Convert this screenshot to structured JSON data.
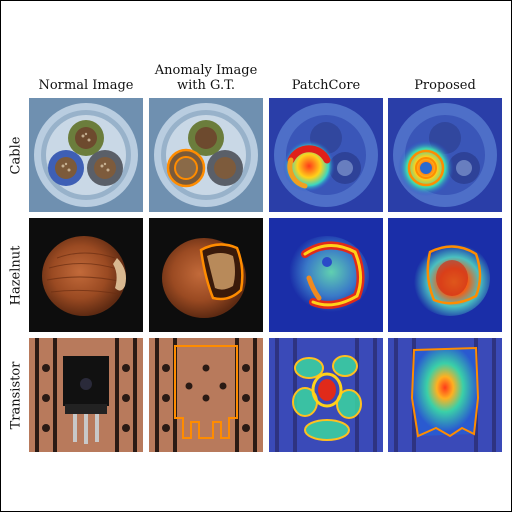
{
  "columns": [
    {
      "id": "normal",
      "label": "Normal Image"
    },
    {
      "id": "anomaly",
      "label": "Anomaly Image with G.T.",
      "lines": [
        "Anomaly Image",
        "with G.T."
      ]
    },
    {
      "id": "patchcore",
      "label": "PatchCore"
    },
    {
      "id": "proposed",
      "label": "Proposed"
    }
  ],
  "rows": [
    {
      "id": "cable",
      "label": "Cable"
    },
    {
      "id": "hazelnut",
      "label": "Hazelnut"
    },
    {
      "id": "transistor",
      "label": "Transistor"
    }
  ],
  "colors": {
    "gt_outline": "#ff8c00",
    "heat_high": "#d7191c",
    "heat_low": "#1a2ea8",
    "cable_bg": "#7fa0bf"
  }
}
